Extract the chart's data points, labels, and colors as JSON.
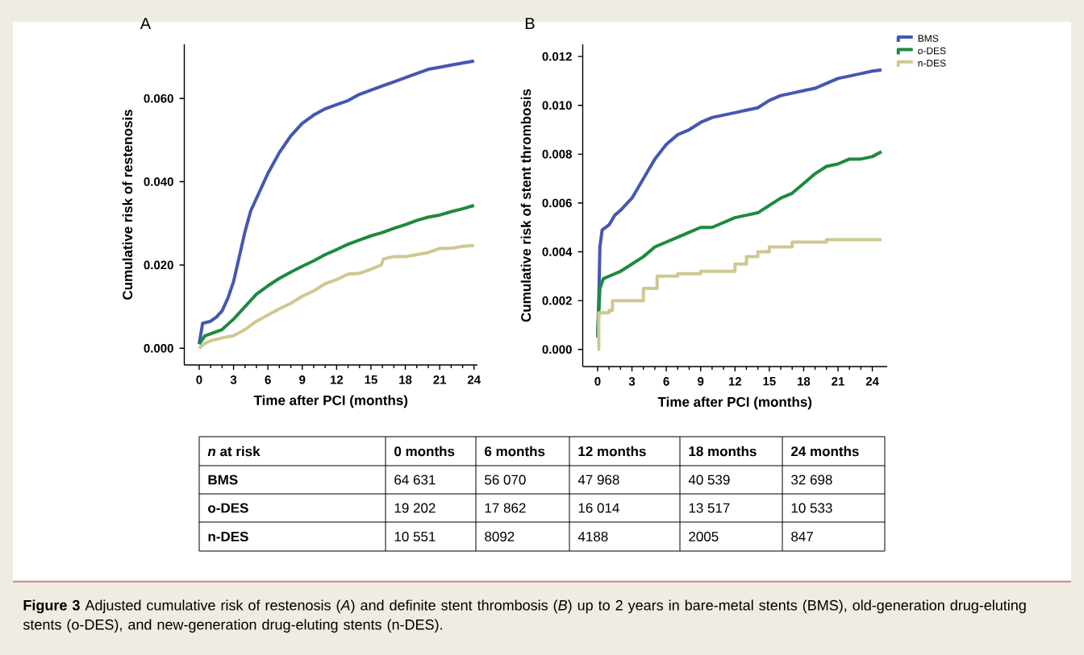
{
  "chart_data": [
    {
      "type": "line",
      "title": "A",
      "xlabel": "Time after PCI (months)",
      "ylabel": "Cumulative risk of restenosis",
      "xlim": [
        -1.3,
        24.3
      ],
      "ylim": [
        -0.004,
        0.073
      ],
      "xticks": [
        0,
        3,
        6,
        9,
        12,
        15,
        18,
        21,
        24
      ],
      "yticks": [
        {
          "value": 0,
          "label": "0.000"
        },
        {
          "value": 0.02,
          "label": "0.020"
        },
        {
          "value": 0.04,
          "label": "0.040"
        },
        {
          "value": 0.06,
          "label": "0.060"
        }
      ],
      "series": [
        {
          "color": "#4557b3",
          "x": [
            0,
            0.3,
            1,
            1.5,
            2,
            2.5,
            3,
            3.5,
            4,
            4.5,
            5,
            6,
            7,
            8,
            9,
            10,
            11,
            12,
            13,
            14,
            15,
            16,
            17,
            18,
            19,
            20,
            21,
            22,
            23,
            24
          ],
          "values": [
            0.001,
            0.006,
            0.0065,
            0.0075,
            0.009,
            0.012,
            0.016,
            0.022,
            0.028,
            0.033,
            0.036,
            0.042,
            0.047,
            0.051,
            0.054,
            0.056,
            0.0575,
            0.0585,
            0.0595,
            0.061,
            0.062,
            0.063,
            0.064,
            0.065,
            0.066,
            0.067,
            0.0675,
            0.068,
            0.0685,
            0.069
          ]
        },
        {
          "color": "#1e8a3e",
          "x": [
            0,
            0.5,
            2,
            3,
            4,
            5,
            6,
            7,
            8,
            9,
            10,
            11,
            12,
            13,
            14,
            15,
            16,
            17,
            18,
            19,
            20,
            21,
            22,
            23,
            24
          ],
          "values": [
            0.001,
            0.003,
            0.0045,
            0.007,
            0.01,
            0.013,
            0.015,
            0.0168,
            0.0183,
            0.0197,
            0.021,
            0.0225,
            0.0237,
            0.025,
            0.026,
            0.027,
            0.0278,
            0.0288,
            0.0297,
            0.0307,
            0.0315,
            0.032,
            0.0328,
            0.0335,
            0.0343
          ]
        },
        {
          "color": "#cfc890",
          "x": [
            0,
            0.5,
            1,
            2,
            3,
            4,
            5,
            6,
            7,
            8,
            9,
            10,
            11,
            12,
            13,
            14,
            15,
            15.9,
            16.1,
            17,
            18,
            19,
            20,
            21,
            22,
            23,
            24
          ],
          "values": [
            0.0,
            0.0012,
            0.0018,
            0.0025,
            0.003,
            0.0045,
            0.0065,
            0.008,
            0.0095,
            0.0108,
            0.0125,
            0.0138,
            0.0155,
            0.0165,
            0.0178,
            0.018,
            0.019,
            0.02,
            0.0215,
            0.022,
            0.022,
            0.0225,
            0.023,
            0.024,
            0.024,
            0.0245,
            0.0247
          ]
        }
      ]
    },
    {
      "type": "line",
      "title": "B",
      "xlabel": "Time after PCI (months)",
      "ylabel": "Cumulative risk of stent thrombosis",
      "legend": "top right",
      "xlim": [
        -1.3,
        25.3
      ],
      "ylim": [
        -0.0007,
        0.0125
      ],
      "xticks": [
        0,
        3,
        6,
        9,
        12,
        15,
        18,
        21,
        24
      ],
      "yticks": [
        {
          "value": 0,
          "label": "0.000"
        },
        {
          "value": 0.002,
          "label": "0.002"
        },
        {
          "value": 0.004,
          "label": "0.004"
        },
        {
          "value": 0.006,
          "label": "0.006"
        },
        {
          "value": 0.008,
          "label": "0.008"
        },
        {
          "value": 0.01,
          "label": "0.010"
        },
        {
          "value": 0.012,
          "label": "0.012"
        }
      ],
      "series": [
        {
          "name": "BMS",
          "color": "#4557b3",
          "x": [
            0,
            0.1,
            0.2,
            0.4,
            1,
            1.5,
            2,
            3,
            4,
            5,
            6,
            7,
            8,
            9,
            10,
            11,
            12,
            13,
            14,
            15,
            16,
            17,
            18,
            19,
            20,
            21,
            22,
            23,
            24,
            24.8
          ],
          "values": [
            0.0005,
            0.002,
            0.0042,
            0.0049,
            0.0051,
            0.0055,
            0.0057,
            0.0062,
            0.007,
            0.0078,
            0.0084,
            0.0088,
            0.009,
            0.0093,
            0.0095,
            0.0096,
            0.0097,
            0.0098,
            0.0099,
            0.0102,
            0.0104,
            0.0105,
            0.0106,
            0.0107,
            0.0109,
            0.0111,
            0.0112,
            0.0113,
            0.0114,
            0.01145
          ]
        },
        {
          "name": "o-DES",
          "color": "#1e8a3e",
          "x": [
            0,
            0.2,
            0.5,
            1,
            2,
            3,
            4,
            5,
            6,
            7,
            8,
            9,
            10,
            11,
            12,
            13,
            14,
            15,
            16,
            17,
            18,
            19,
            20,
            21,
            22,
            23,
            24,
            24.8
          ],
          "values": [
            0.0005,
            0.0025,
            0.0029,
            0.003,
            0.0032,
            0.0035,
            0.0038,
            0.0042,
            0.0044,
            0.0046,
            0.0048,
            0.005,
            0.005,
            0.0052,
            0.0054,
            0.0055,
            0.0056,
            0.0059,
            0.0062,
            0.0064,
            0.0068,
            0.0072,
            0.0075,
            0.0076,
            0.0078,
            0.0078,
            0.0079,
            0.0081
          ]
        },
        {
          "name": "n-DES",
          "color": "#cfc890",
          "type": "step",
          "x": [
            0,
            0.1,
            1,
            1.3,
            3,
            4,
            5.2,
            7,
            9,
            11.8,
            12,
            13,
            14,
            15,
            17,
            20,
            24.8
          ],
          "values": [
            0,
            0.0015,
            0.0016,
            0.002,
            0.002,
            0.0025,
            0.003,
            0.0031,
            0.0032,
            0.0032,
            0.0035,
            0.0038,
            0.004,
            0.0042,
            0.0044,
            0.0045,
            0.0045
          ]
        }
      ]
    },
    {
      "type": "other",
      "title": "*n* at risk",
      "categories": [
        "0 months",
        "6 months",
        "12 months",
        "18 months",
        "24 months"
      ],
      "series": [
        {
          "name": "BMS",
          "values": [
            64631,
            56070,
            47968,
            40539,
            32698
          ],
          "value_labels": [
            "64 631",
            "56 070",
            "47 968",
            "40 539",
            "32 698"
          ]
        },
        {
          "name": "o-DES",
          "values": [
            19202,
            17862,
            16014,
            13517,
            10533
          ],
          "value_labels": [
            "19 202",
            "17 862",
            "16 014",
            "13 517",
            "10 533"
          ]
        },
        {
          "name": "n-DES",
          "values": [
            10551,
            8092,
            4188,
            2005,
            847
          ],
          "value_labels": [
            "10 551",
            "8092",
            "4188",
            "2005",
            "847"
          ]
        }
      ],
      "annotations": [
        "**Figure 3** Adjusted cumulative risk of restenosis (*A*) and definite stent thrombosis (*B*) up to 2 years in bare-metal stents (BMS), old-generation drug-eluting stents (o-DES), and new-generation drug-eluting stents (n-DES)."
      ]
    }
  ]
}
